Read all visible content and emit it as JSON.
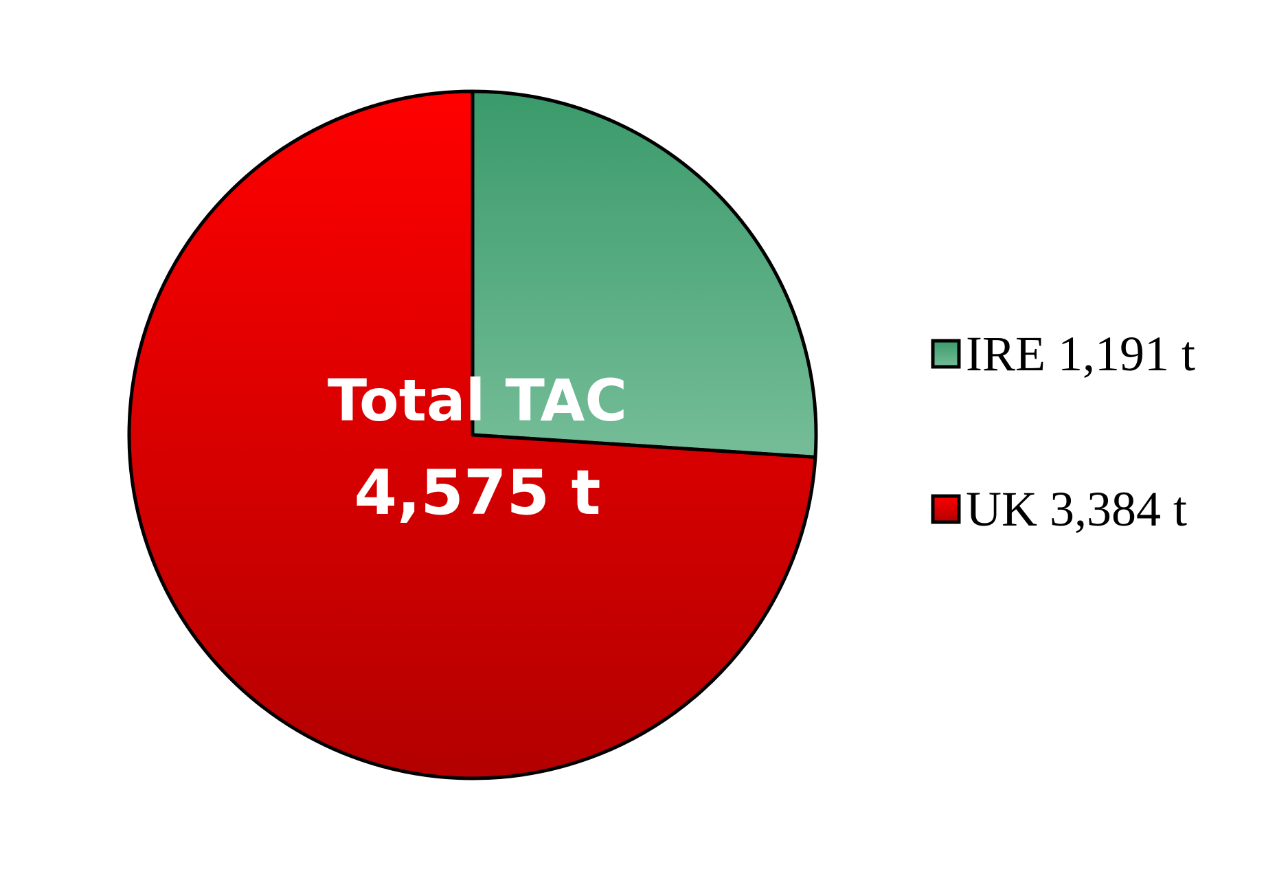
{
  "chart_data": {
    "type": "pie",
    "center_label": {
      "line1": "Total TAC",
      "line2": "4,575 t"
    },
    "slices": [
      {
        "name": "IRE",
        "value": 1191,
        "label": "IRE 1,191 t",
        "color_top": "#3a9a6a",
        "color_bottom": "#75bd98"
      },
      {
        "name": "UK",
        "value": 3384,
        "label": "UK 3,384 t",
        "color_top": "#ff0000",
        "color_bottom": "#b30000"
      }
    ],
    "start_angle": "12 o'clock",
    "direction": "clockwise",
    "legend_position": "right"
  }
}
